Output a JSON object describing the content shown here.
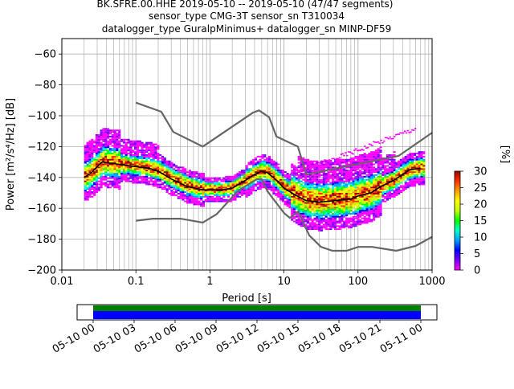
{
  "header": {
    "line1": "BK.SFRE.00.HHE   2019-05-10 -- 2019-05-10  (47/47 segments)",
    "line2": "sensor_type CMG-3T sensor_sn T310034",
    "line3": "datalogger_type GuralpMinimus+ datalogger_sn MINP-DF59"
  },
  "chart_data": {
    "type": "heatmap",
    "xlabel": "Period [s]",
    "ylabel": "Power [m²/s⁴/Hz] [dB]",
    "xscale": "log",
    "xlim": [
      0.01,
      1000
    ],
    "ylim": [
      -200,
      -50
    ],
    "grid": true,
    "x_ticks": [
      0.01,
      0.1,
      1,
      10,
      100,
      1000
    ],
    "x_tick_labels": [
      "0.01",
      "0.1",
      "1",
      "10",
      "100",
      "1000"
    ],
    "y_ticks": [
      -200,
      -180,
      -160,
      -140,
      -120,
      -100,
      -80,
      -60
    ],
    "y_tick_labels": [
      "−200",
      "−180",
      "−160",
      "−140",
      "−120",
      "−100",
      "−80",
      "−60"
    ],
    "colorbar": {
      "label": "[%]",
      "range": [
        0,
        30
      ],
      "ticks": [
        0,
        5,
        10,
        15,
        20,
        25,
        30
      ],
      "tick_labels": [
        "0",
        "5",
        "10",
        "15",
        "20",
        "25",
        "30"
      ],
      "colors": [
        "#ff00ff",
        "#7a00ff",
        "#0000ff",
        "#00a0ff",
        "#00ffd0",
        "#00ff00",
        "#c0ff00",
        "#ffff00",
        "#ffa000",
        "#ff3000",
        "#a00000"
      ]
    },
    "series": [
      {
        "kind": "mode",
        "color": "#000000",
        "points": [
          [
            0.02,
            -140
          ],
          [
            0.025,
            -137
          ],
          [
            0.03,
            -133
          ],
          [
            0.035,
            -130
          ],
          [
            0.05,
            -131
          ],
          [
            0.07,
            -132
          ],
          [
            0.1,
            -133
          ],
          [
            0.15,
            -134
          ],
          [
            0.2,
            -136
          ],
          [
            0.3,
            -141
          ],
          [
            0.5,
            -146
          ],
          [
            0.8,
            -148
          ],
          [
            1,
            -148
          ],
          [
            1.5,
            -148
          ],
          [
            2,
            -147
          ],
          [
            3,
            -142
          ],
          [
            4,
            -138
          ],
          [
            5,
            -136
          ],
          [
            6,
            -137
          ],
          [
            8,
            -142
          ],
          [
            10,
            -147
          ],
          [
            15,
            -152
          ],
          [
            20,
            -155
          ],
          [
            30,
            -156
          ],
          [
            50,
            -155
          ],
          [
            80,
            -154
          ],
          [
            100,
            -152
          ],
          [
            150,
            -150
          ],
          [
            200,
            -146
          ],
          [
            300,
            -142
          ],
          [
            400,
            -138
          ],
          [
            500,
            -135
          ],
          [
            700,
            -134
          ]
        ]
      },
      {
        "kind": "nhnm",
        "color": "#666666",
        "points": [
          [
            0.1,
            -91.5
          ],
          [
            0.22,
            -97.4
          ],
          [
            0.32,
            -110.5
          ],
          [
            0.8,
            -120
          ],
          [
            3.8,
            -98
          ],
          [
            4.6,
            -96.5
          ],
          [
            6.3,
            -101
          ],
          [
            7.9,
            -113.5
          ],
          [
            15.4,
            -120
          ],
          [
            20,
            -138
          ],
          [
            354,
            -126
          ],
          [
            1000,
            -111
          ]
        ]
      },
      {
        "kind": "nlnm",
        "color": "#666666",
        "points": [
          [
            0.1,
            -168
          ],
          [
            0.17,
            -166.7
          ],
          [
            0.4,
            -166.7
          ],
          [
            0.8,
            -169.2
          ],
          [
            1.24,
            -163.7
          ],
          [
            2.4,
            -148.6
          ],
          [
            4.3,
            -141.1
          ],
          [
            5,
            -141.1
          ],
          [
            6,
            -149
          ],
          [
            10,
            -163
          ],
          [
            12,
            -166.2
          ],
          [
            15.6,
            -162
          ],
          [
            21.9,
            -177.5
          ],
          [
            31.6,
            -185
          ],
          [
            45,
            -187.5
          ],
          [
            70,
            -187.5
          ],
          [
            101,
            -185
          ],
          [
            154,
            -185
          ],
          [
            328,
            -187.5
          ],
          [
            600,
            -184.4
          ],
          [
            1000,
            -178.5
          ]
        ]
      }
    ]
  },
  "timeline": {
    "tick_labels": [
      "05-10 00",
      "05-10 03",
      "05-10 06",
      "05-10 09",
      "05-10 12",
      "05-10 15",
      "05-10 18",
      "05-10 21",
      "05-11 00"
    ],
    "data_coverage_color": "#008000",
    "psd_coverage_color": "#0000ff"
  }
}
